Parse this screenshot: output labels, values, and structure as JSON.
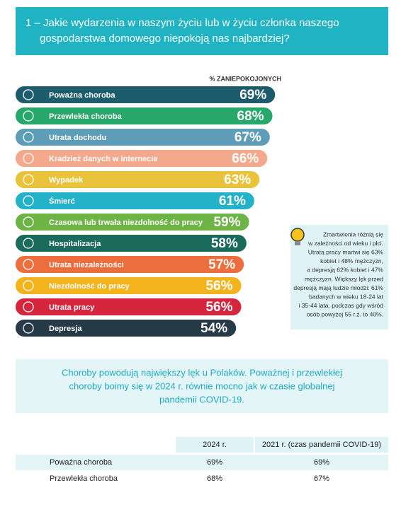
{
  "header": {
    "title_lines": [
      "1 – Jakie wydarzenia w naszym życiu lub w życiu członka naszego",
      "gospodarstwa domowego niepokoją nas najbardziej?"
    ]
  },
  "chart_data": {
    "type": "bar",
    "subtitle": "% ZANIEPOKOJONYCH",
    "categories": [
      "Poważna choroba",
      "Przewlekła choroba",
      "Utrata dochodu",
      "Kradzież danych w internecie",
      "Wypadek",
      "Śmierć",
      "Czasowa lub trwała niezdolność do pracy",
      "Hospitalizacja",
      "Utrata niezależności",
      "Niezdolność do pracy",
      "Utrata pracy",
      "Depresja"
    ],
    "values": [
      69,
      68,
      67,
      66,
      63,
      61,
      59,
      58,
      57,
      56,
      56,
      54
    ],
    "value_labels": [
      "69%",
      "68%",
      "67%",
      "66%",
      "63%",
      "61%",
      "59%",
      "58%",
      "57%",
      "56%",
      "56%",
      "54%"
    ],
    "colors": [
      "#1d5c6c",
      "#27a76a",
      "#5d9db8",
      "#f3a98b",
      "#e9c33c",
      "#24b2c8",
      "#6db446",
      "#1a6b5b",
      "#ec6d3d",
      "#f3b31c",
      "#d5263d",
      "#263a47"
    ]
  },
  "note": {
    "lines": [
      "Zmartwienia różnią się",
      "w zależności od wieku i płci.",
      "Utratą pracy martwi się 63%",
      "kobiet i 48% mężczyzn,",
      "a depresją 62% kobiet i 47%",
      "mężczyzn. Większy lęk przed",
      "depresją mają ludzie młodzi: 61%",
      "badanych w wieku 18-24 lat",
      "i 35-44 lata, podczas gdy wśród",
      "osób powyżej 55 r.ż. to 40%."
    ]
  },
  "highlight": {
    "lines": [
      "Choroby powodują największy lęk u Polaków. Poważnej i przewlekłej",
      "choroby boimy się w 2024 r. równie mocno jak w czasie globalnej",
      "pandemii COVID-19."
    ]
  },
  "table": {
    "header": [
      "2024 r.",
      "2021 r. (czas pandemii COVID-19)"
    ],
    "rows": [
      [
        "Poważna choroba",
        "69%",
        "69%"
      ],
      [
        "Przewlekła choroba",
        "68%",
        "67%"
      ]
    ]
  }
}
